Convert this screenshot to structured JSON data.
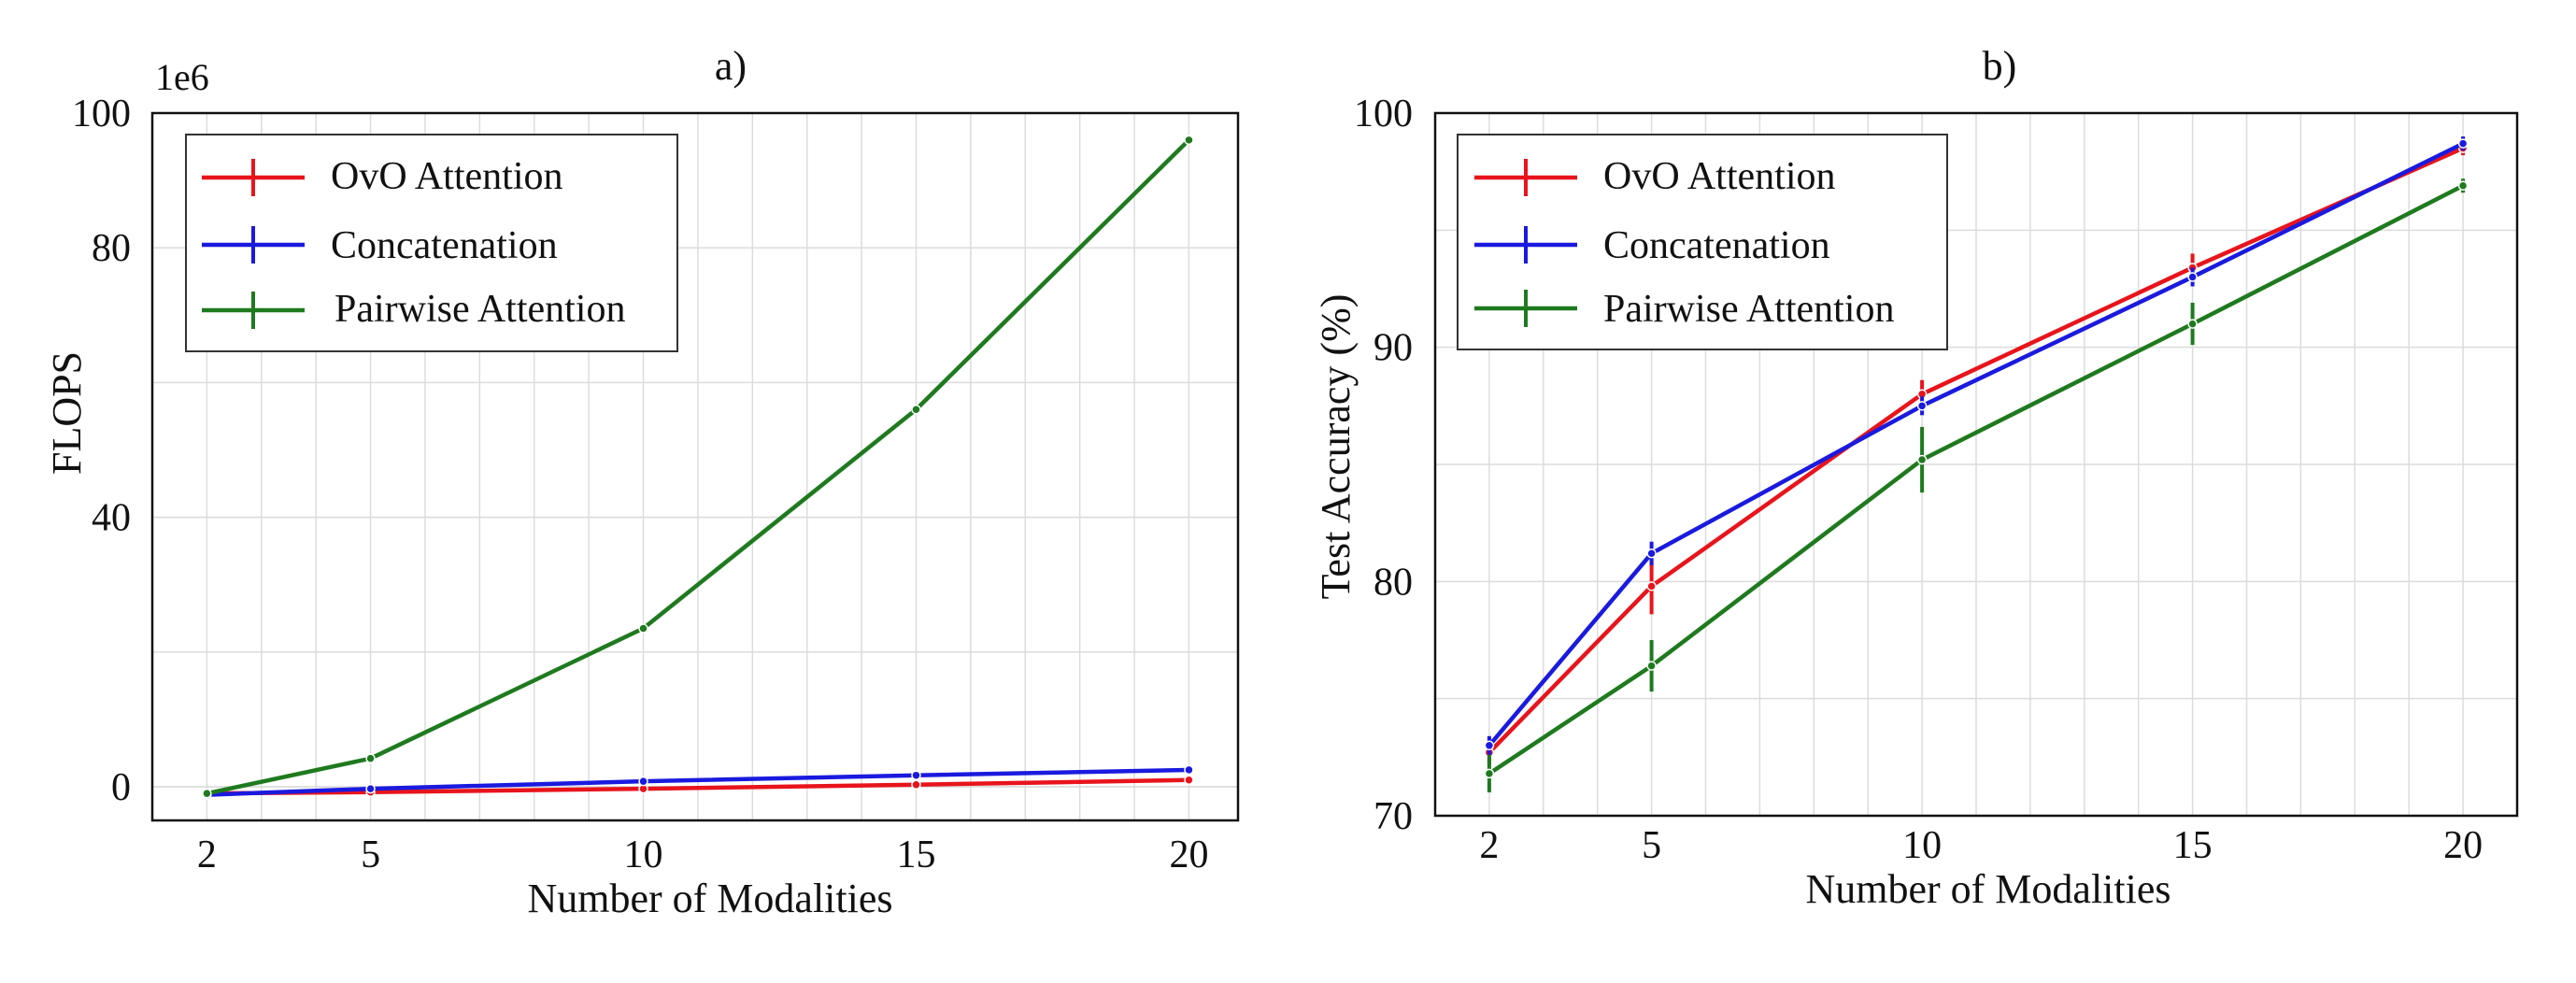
{
  "chart_data": [
    {
      "type": "line",
      "title": "a)",
      "xlabel": "Number of Modalities",
      "ylabel": "FLOPS",
      "y_exponent_label": "1e6",
      "x": [
        2,
        5,
        10,
        15,
        20
      ],
      "xticks": [
        2,
        5,
        10,
        15,
        20
      ],
      "xticks_labels": [
        "2",
        "5",
        "10",
        "15",
        "20"
      ],
      "yticks": [
        0,
        40,
        80,
        100
      ],
      "yticks_labels": [
        "0",
        "40",
        "80",
        "100"
      ],
      "xlim": [
        1,
        20.9
      ],
      "ylim": [
        -5,
        100
      ],
      "x_grid": [
        1,
        2,
        3,
        4,
        5,
        6,
        7,
        8,
        9,
        10,
        11,
        12,
        13,
        14,
        15,
        16,
        17,
        18,
        19,
        20
      ],
      "y_grid": [
        0,
        20,
        40,
        60,
        80,
        100
      ],
      "legend_position": "top-left",
      "series": [
        {
          "name": "OvO Attention",
          "color": "#e8141c",
          "values": [
            -1,
            -0.8,
            -0.3,
            0.3,
            1
          ],
          "errors": [
            0.3,
            0.3,
            0.3,
            0.3,
            0.3
          ]
        },
        {
          "name": "Concatenation",
          "color": "#1a1adf",
          "values": [
            -1.2,
            -0.3,
            0.8,
            1.7,
            2.5
          ],
          "errors": [
            0.3,
            0.3,
            0.3,
            0.3,
            0.3
          ]
        },
        {
          "name": "Pairwise Attention",
          "color": "#1f7a1f",
          "values": [
            -1,
            4.2,
            23.5,
            56,
            96
          ],
          "errors": [
            0.3,
            0.3,
            0.3,
            0.3,
            0.3
          ]
        }
      ]
    },
    {
      "type": "line",
      "title": "b)",
      "xlabel": "Number of Modalities",
      "ylabel": "Test Accuracy (%)",
      "x": [
        2,
        5,
        10,
        15,
        20
      ],
      "xticks": [
        2,
        5,
        10,
        15,
        20
      ],
      "xticks_labels": [
        "2",
        "5",
        "10",
        "15",
        "20"
      ],
      "yticks": [
        70,
        80,
        90,
        100
      ],
      "yticks_labels": [
        "70",
        "80",
        "90",
        "100"
      ],
      "xlim": [
        1,
        21
      ],
      "ylim": [
        70,
        100
      ],
      "x_grid": [
        1,
        2,
        3,
        4,
        5,
        6,
        7,
        8,
        9,
        10,
        11,
        12,
        13,
        14,
        15,
        16,
        17,
        18,
        19,
        20
      ],
      "y_grid": [
        75,
        85,
        95
      ],
      "legend_position": "top-left",
      "series": [
        {
          "name": "OvO Attention",
          "color": "#e8141c",
          "values": [
            72.7,
            79.8,
            88,
            93.4,
            98.5
          ],
          "errors": [
            0.5,
            1.2,
            0.6,
            0.6,
            0.3
          ]
        },
        {
          "name": "Concatenation",
          "color": "#1a1adf",
          "values": [
            73.0,
            81.2,
            87.5,
            93.0,
            98.7
          ],
          "errors": [
            0.4,
            0.5,
            0.4,
            0.4,
            0.3
          ]
        },
        {
          "name": "Pairwise Attention",
          "color": "#1f7a1f",
          "values": [
            71.8,
            76.4,
            85.2,
            91.0,
            96.9
          ],
          "errors": [
            0.8,
            1.1,
            1.4,
            0.9,
            0.3
          ]
        }
      ]
    }
  ]
}
